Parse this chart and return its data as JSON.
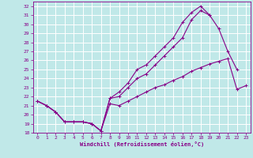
{
  "xlabel": "Windchill (Refroidissement éolien,°C)",
  "bg_color": "#c0e8e8",
  "line_color": "#880088",
  "grid_color": "#ffffff",
  "xlim": [
    -0.5,
    23.5
  ],
  "ylim": [
    18,
    32.5
  ],
  "xticks": [
    0,
    1,
    2,
    3,
    4,
    5,
    6,
    7,
    8,
    9,
    10,
    11,
    12,
    13,
    14,
    15,
    16,
    17,
    18,
    19,
    20,
    21,
    22,
    23
  ],
  "yticks": [
    18,
    19,
    20,
    21,
    22,
    23,
    24,
    25,
    26,
    27,
    28,
    29,
    30,
    31,
    32
  ],
  "series": [
    {
      "x": [
        0,
        1,
        2,
        3,
        4,
        5,
        6,
        7,
        8,
        9,
        10,
        11,
        12,
        13,
        14,
        15,
        16,
        17,
        18,
        19,
        20,
        21,
        22,
        23
      ],
      "y": [
        21.5,
        21.0,
        20.3,
        19.2,
        19.2,
        19.2,
        19.0,
        18.2,
        21.2,
        21.0,
        21.5,
        22.0,
        22.5,
        23.0,
        23.3,
        23.8,
        24.2,
        24.8,
        25.2,
        25.6,
        25.9,
        26.2,
        22.8,
        23.2
      ]
    },
    {
      "x": [
        0,
        1,
        2,
        3,
        4,
        5,
        6,
        7,
        8,
        9,
        10,
        11,
        12,
        13,
        14,
        15,
        16,
        17,
        18,
        19,
        20,
        21,
        22
      ],
      "y": [
        21.5,
        21.0,
        20.3,
        19.2,
        19.2,
        19.2,
        19.0,
        18.2,
        21.8,
        22.0,
        23.0,
        24.0,
        24.5,
        25.5,
        26.5,
        27.5,
        28.5,
        30.5,
        31.5,
        31.0,
        29.5,
        27.0,
        25.0
      ]
    },
    {
      "x": [
        0,
        1,
        2,
        3,
        4,
        5,
        6,
        7,
        8,
        9,
        10,
        11,
        12,
        13,
        14,
        15,
        16,
        17,
        18,
        19
      ],
      "y": [
        21.5,
        21.0,
        20.3,
        19.2,
        19.2,
        19.2,
        19.0,
        18.2,
        21.8,
        22.5,
        23.5,
        25.0,
        25.5,
        26.5,
        27.5,
        28.5,
        30.2,
        31.3,
        32.0,
        31.0
      ]
    }
  ]
}
